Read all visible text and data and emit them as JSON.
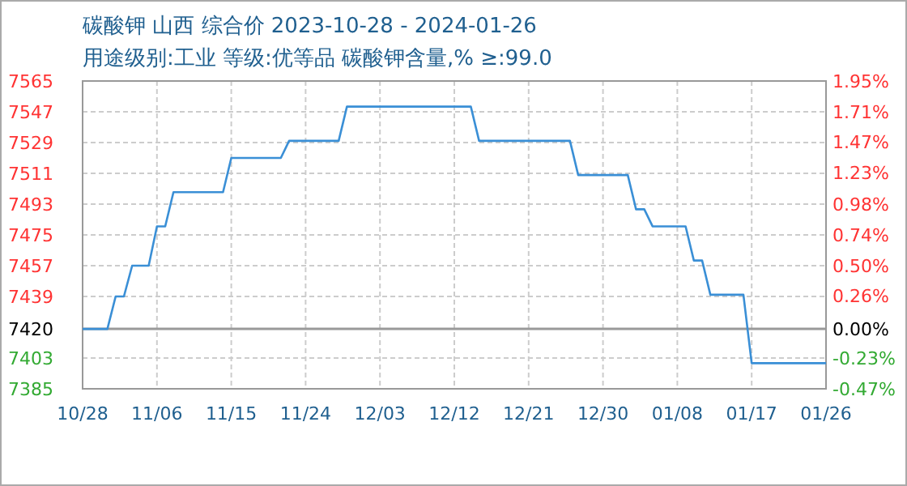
{
  "chart_data": {
    "type": "line",
    "title": "碳酸钾 山西 综合价 2023-10-28 - 2024-01-26",
    "subtitle": "用途级别:工业 等级:优等品 碳酸钾含量,% ≥:99.0",
    "x": [
      "2023-10-28",
      "2023-10-31",
      "2023-11-01",
      "2023-11-02",
      "2023-11-03",
      "2023-11-05",
      "2023-11-06",
      "2023-11-07",
      "2023-11-08",
      "2023-11-14",
      "2023-11-15",
      "2023-11-21",
      "2023-11-22",
      "2023-11-28",
      "2023-11-29",
      "2023-12-14",
      "2023-12-15",
      "2023-12-26",
      "2023-12-27",
      "2024-01-02",
      "2024-01-03",
      "2024-01-04",
      "2024-01-05",
      "2024-01-09",
      "2024-01-10",
      "2024-01-11",
      "2024-01-12",
      "2024-01-16",
      "2024-01-17",
      "2024-01-26"
    ],
    "series": [
      {
        "color": "#3a8fd6",
        "values": [
          7420,
          7420,
          7439,
          7439,
          7457,
          7457,
          7480,
          7480,
          7500,
          7500,
          7520,
          7520,
          7530,
          7530,
          7550,
          7550,
          7530,
          7530,
          7510,
          7510,
          7490,
          7490,
          7480,
          7480,
          7460,
          7460,
          7440,
          7440,
          7400,
          7400
        ]
      }
    ],
    "xlim": [
      "2023-10-28",
      "2024-01-26"
    ],
    "xticks": [
      {
        "value": "2023-10-28",
        "label": "10/28"
      },
      {
        "value": "2023-11-06",
        "label": "11/06"
      },
      {
        "value": "2023-11-15",
        "label": "11/15"
      },
      {
        "value": "2023-11-24",
        "label": "11/24"
      },
      {
        "value": "2023-12-03",
        "label": "12/03"
      },
      {
        "value": "2023-12-12",
        "label": "12/12"
      },
      {
        "value": "2023-12-21",
        "label": "12/21"
      },
      {
        "value": "2023-12-30",
        "label": "12/30"
      },
      {
        "value": "2024-01-08",
        "label": "01/08"
      },
      {
        "value": "2024-01-17",
        "label": "01/17"
      },
      {
        "value": "2024-01-26",
        "label": "01/26"
      }
    ],
    "ylim": [
      7385,
      7565
    ],
    "yticks": [
      7565,
      7547,
      7529,
      7511,
      7493,
      7475,
      7457,
      7439,
      7420,
      7403,
      7385
    ],
    "y2lim": [
      -0.47,
      1.95
    ],
    "y2ticks": [
      {
        "value": 1.95,
        "label": "1.95%"
      },
      {
        "value": 1.71,
        "label": "1.71%"
      },
      {
        "value": 1.47,
        "label": "1.47%"
      },
      {
        "value": 1.23,
        "label": "1.23%"
      },
      {
        "value": 0.98,
        "label": "0.98%"
      },
      {
        "value": 0.74,
        "label": "0.74%"
      },
      {
        "value": 0.5,
        "label": "0.50%"
      },
      {
        "value": 0.26,
        "label": "0.26%"
      },
      {
        "value": 0,
        "label": "0.00%"
      },
      {
        "value": -0.23,
        "label": "-0.23%"
      },
      {
        "value": -0.47,
        "label": "-0.47%"
      }
    ],
    "ref_lines": [
      {
        "axis": "y",
        "value": 7420,
        "color": "#999999"
      }
    ],
    "grid": true,
    "marker": "none",
    "line_style": "solid"
  }
}
